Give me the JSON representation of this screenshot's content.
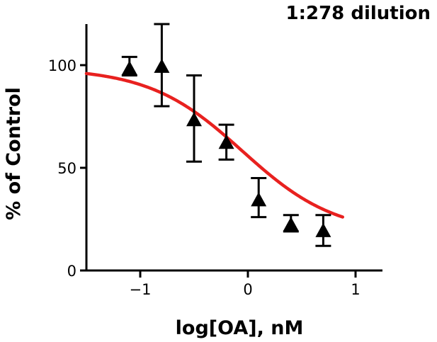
{
  "chart_data": {
    "type": "scatter",
    "title": "1:278 dilution",
    "xlabel": "log[OA], nM",
    "ylabel": "% of Control",
    "xlim": [
      -1.5,
      1.25
    ],
    "ylim": [
      0,
      120
    ],
    "xticks": [
      -1,
      0,
      1
    ],
    "xtick_labels": [
      "−1",
      "0",
      "1"
    ],
    "yticks": [
      0,
      50,
      100
    ],
    "ytick_labels": [
      "0",
      "50",
      "100"
    ],
    "grid": false,
    "series": [
      {
        "marker": "triangle",
        "color": "#000000",
        "x": [
          -1.1,
          -0.8,
          -0.5,
          -0.2,
          0.1,
          0.4,
          0.7
        ],
        "y": [
          98,
          99,
          73,
          62,
          34,
          22,
          19
        ],
        "err_low": [
          95,
          80,
          53,
          54,
          26,
          19,
          12
        ],
        "err_high": [
          104,
          120,
          95,
          71,
          45,
          27,
          27
        ]
      },
      {
        "type": "line",
        "color": "#e8211f",
        "fit": "sigmoid",
        "bottom": 17.5,
        "top": 98.7,
        "logIC50": -0.05,
        "hillslope": -1.0,
        "x_range": [
          -1.5,
          0.88
        ]
      }
    ]
  }
}
